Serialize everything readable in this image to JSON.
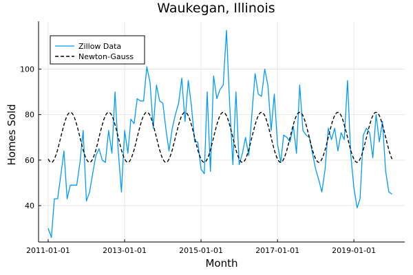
{
  "chart_data": {
    "type": "line",
    "title": "Waukegan, Illinois",
    "xlabel": "Month",
    "ylabel": "Homes Sold",
    "xlim": [
      "2010-10-01",
      "2020-05-01"
    ],
    "ylim": [
      24,
      121
    ],
    "x_ticks": [
      "2011-01-01",
      "2013-01-01",
      "2015-01-01",
      "2017-01-01",
      "2019-01-01"
    ],
    "y_ticks": [
      40,
      60,
      80,
      100
    ],
    "grid": true,
    "legend_position": "top-left",
    "colors": {
      "zillow": "#009AFA",
      "newton_gauss": "#000000"
    },
    "series": [
      {
        "name": "Zillow Data",
        "style": "solid",
        "start": "2011-01-01",
        "frequency": "monthly",
        "values": [
          30,
          26,
          43,
          43,
          53,
          64,
          43,
          49,
          49,
          49,
          59,
          73,
          42,
          46,
          54,
          62,
          65,
          60,
          59,
          73,
          63,
          90,
          64,
          46,
          73,
          63,
          78,
          76,
          87,
          86,
          86,
          101,
          94,
          74,
          93,
          86,
          85,
          73,
          64,
          74,
          80,
          85,
          96,
          77,
          95,
          84,
          68,
          68,
          56,
          54,
          90,
          55,
          97,
          87,
          91,
          93,
          117,
          85,
          58,
          90,
          58,
          63,
          70,
          62,
          80,
          98,
          89,
          88,
          100,
          93,
          73,
          89,
          67,
          59,
          71,
          70,
          68,
          75,
          63,
          93,
          73,
          71,
          70,
          63,
          56,
          51,
          46,
          56,
          74,
          69,
          74,
          64,
          72,
          69,
          95,
          63,
          48,
          39,
          43,
          71,
          74,
          72,
          61,
          80,
          68,
          77,
          55,
          46,
          45
        ]
      },
      {
        "name": "Newton-Gauss",
        "style": "dashed",
        "start": "2011-01-01",
        "frequency": "monthly",
        "mean": 70,
        "amplitude": 11,
        "period_months": 12,
        "peak_month": 7
      }
    ]
  }
}
